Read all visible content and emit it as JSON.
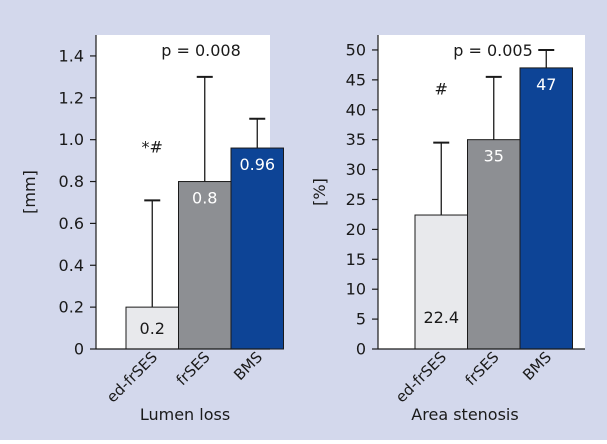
{
  "colors": {
    "panel_bg": "#d3d8ec",
    "plot_bg": "#ffffff",
    "axis": "#1a1a1a",
    "bar_light": "#e8e9ec",
    "bar_gray": "#8d8f93",
    "bar_blue": "#0d4496",
    "label_dark": "#1a1a1a",
    "label_light": "#ffffff"
  },
  "chart_data": [
    {
      "type": "bar",
      "xlabel": "Lumen loss",
      "ylabel": "[mm]",
      "annotation": "p = 0.008",
      "categories": [
        "ed-frSES",
        "frSES",
        "BMS"
      ],
      "values": [
        0.2,
        0.8,
        0.96
      ],
      "value_labels": [
        "0.2",
        "0.8",
        "0.96"
      ],
      "error_upper": [
        0.71,
        1.3,
        1.1
      ],
      "markers": [
        "*#",
        "",
        ""
      ],
      "ylim": [
        0,
        1.5
      ],
      "yticks": [
        0,
        0.2,
        0.4,
        0.6,
        0.8,
        1.0,
        1.2,
        1.4
      ],
      "ytick_labels": [
        "0",
        "0.2",
        "0.4",
        "0.6",
        "0.8",
        "1.0",
        "1.2",
        "1.4"
      ],
      "grid": false,
      "legend": "none"
    },
    {
      "type": "bar",
      "xlabel": "Area stenosis",
      "ylabel": "[%]",
      "annotation": "p = 0.005",
      "categories": [
        "ed-frSES",
        "frSES",
        "BMS"
      ],
      "values": [
        22.4,
        35,
        47
      ],
      "value_labels": [
        "22.4",
        "35",
        "47"
      ],
      "error_upper": [
        34.5,
        45.5,
        50
      ],
      "markers": [
        "#",
        "",
        ""
      ],
      "ylim": [
        0,
        52.5
      ],
      "yticks": [
        0,
        5,
        10,
        15,
        20,
        25,
        30,
        35,
        40,
        45,
        50
      ],
      "ytick_labels": [
        "0",
        "5",
        "10",
        "15",
        "20",
        "25",
        "30",
        "35",
        "40",
        "45",
        "50"
      ],
      "grid": false,
      "legend": "none"
    }
  ]
}
